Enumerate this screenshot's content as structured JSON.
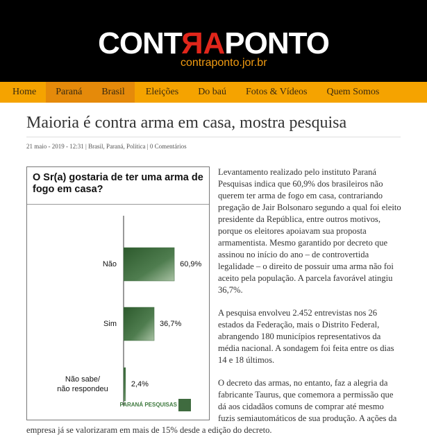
{
  "header": {
    "logo": [
      "CONT",
      "RA",
      "PONTO"
    ],
    "site": "contraponto.jor.br"
  },
  "nav": [
    "Home",
    "Paraná",
    "Brasil",
    "Eleições",
    "Do baú",
    "Fotos & Vídeos",
    "Quem Somos"
  ],
  "article": {
    "title": "Maioria é contra arma em casa, mostra pesquisa",
    "date": "21 maio - 2019 - 12:31",
    "categories": "Brasil, Paraná, Política",
    "comments": "0 Comentários",
    "paragraphs": [
      "Levantamento realizado pelo instituto Paraná Pesquisas indica que 60,9% dos brasileiros não querem ter arma de fogo em casa, contrariando pregação de Jair Bolsonaro segundo a qual foi eleito presidente da República, entre outros motivos, porque os eleitores apoiavam sua proposta armamentista. Mesmo garantido por decreto que assinou no início do ano – de controvertida legalidade – o direito de possuir uma arma não foi aceito pela população. A parcela favorável atingiu 36,7%.",
      "A pesquisa envolveu 2.452 entrevistas nos 26 estados da Federação, mais o Distrito Federal, abrangendo 180 municípios representativos da média nacional. A sondagem foi feita entre os dias 14 e 18 últimos.",
      "O decreto das armas, no entanto, faz a alegria da fabricante Taurus, que comemora a permissão que dá aos cidadãos comuns de comprar até mesmo fuzis semiautomáticos de sua produção. A ações da empresa já se valorizaram em mais de 15% desde a edição do decreto."
    ]
  },
  "chart_data": {
    "type": "bar",
    "title": "O Sr(a) gostaria de ter uma arma de fogo em casa?",
    "categories": [
      "Não",
      "Sim",
      "Não sabe/ não respondeu"
    ],
    "values": [
      60.9,
      36.7,
      2.4
    ],
    "value_labels": [
      "60,9%",
      "36,7%",
      "2,4%"
    ],
    "color": "#3f6b3f",
    "source": "PARANÁ PESQUISAS"
  }
}
